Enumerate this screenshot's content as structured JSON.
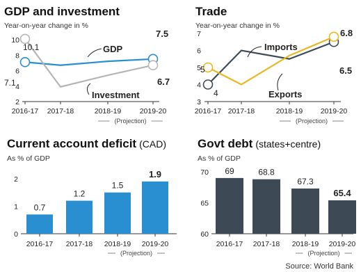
{
  "source": "Source: World Bank",
  "projection_label": "(Projection)",
  "chart_data": [
    {
      "id": "gdp",
      "type": "line",
      "title": "GDP and investment",
      "subtitle": "Year-on-year change in %",
      "categories": [
        "2016-17",
        "2017-18",
        "2018-19",
        "2019-20"
      ],
      "ylim": [
        2,
        10
      ],
      "yticks": [
        2,
        4,
        6,
        8,
        10
      ],
      "projection_from": "2018-19",
      "series": [
        {
          "name": "GDP",
          "values": [
            7.1,
            6.7,
            7.2,
            7.5
          ],
          "color": "#2a8fd0",
          "end_label": "7.5",
          "start_label": "7.1"
        },
        {
          "name": "Investment",
          "values": [
            10.1,
            3.9,
            5.4,
            6.7
          ],
          "color": "#b5b5b5",
          "end_label": "6.7",
          "start_label": "10.1"
        }
      ]
    },
    {
      "id": "trade",
      "type": "line",
      "title": "Trade",
      "subtitle": "Year-on-year change in %",
      "categories": [
        "2016-17",
        "2017-18",
        "2018-19",
        "2019-20"
      ],
      "ylim": [
        3,
        7
      ],
      "yticks": [
        3,
        4,
        5,
        6,
        7
      ],
      "projection_from": "2018-19",
      "series": [
        {
          "name": "Imports",
          "values": [
            4,
            6.0,
            5.5,
            6.5
          ],
          "color": "#3d4a55",
          "end_label": "6.5",
          "start_label": "4"
        },
        {
          "name": "Exports",
          "values": [
            5,
            4.0,
            5.7,
            6.8
          ],
          "color": "#e8b820",
          "end_label": "6.8",
          "start_label": "5"
        }
      ]
    },
    {
      "id": "cad",
      "type": "bar",
      "title": "Current account deficit",
      "title_note": "(CAD)",
      "subtitle": "As % of GDP",
      "categories": [
        "2016-17",
        "2017-18",
        "2018-19",
        "2019-20"
      ],
      "values": [
        0.7,
        1.2,
        1.5,
        1.9
      ],
      "value_labels": [
        "0.7",
        "1.2",
        "1.5",
        "1.9"
      ],
      "ylim": [
        0,
        2.25
      ],
      "yticks": [
        0,
        1,
        2
      ],
      "color": "#2a8fd0",
      "projection_from": "2018-19"
    },
    {
      "id": "debt",
      "type": "bar",
      "title": "Govt debt",
      "title_note": "(states+centre)",
      "subtitle": "As % of GDP",
      "categories": [
        "2016-17",
        "2017-18",
        "2018-19",
        "2019-20"
      ],
      "values": [
        69,
        68.8,
        67.3,
        65.4
      ],
      "value_labels": [
        "69",
        "68.8",
        "67.3",
        "65.4"
      ],
      "ylim": [
        60,
        70
      ],
      "yticks": [
        60,
        65,
        70
      ],
      "color": "#3d4a55",
      "projection_from": "2018-19"
    }
  ]
}
